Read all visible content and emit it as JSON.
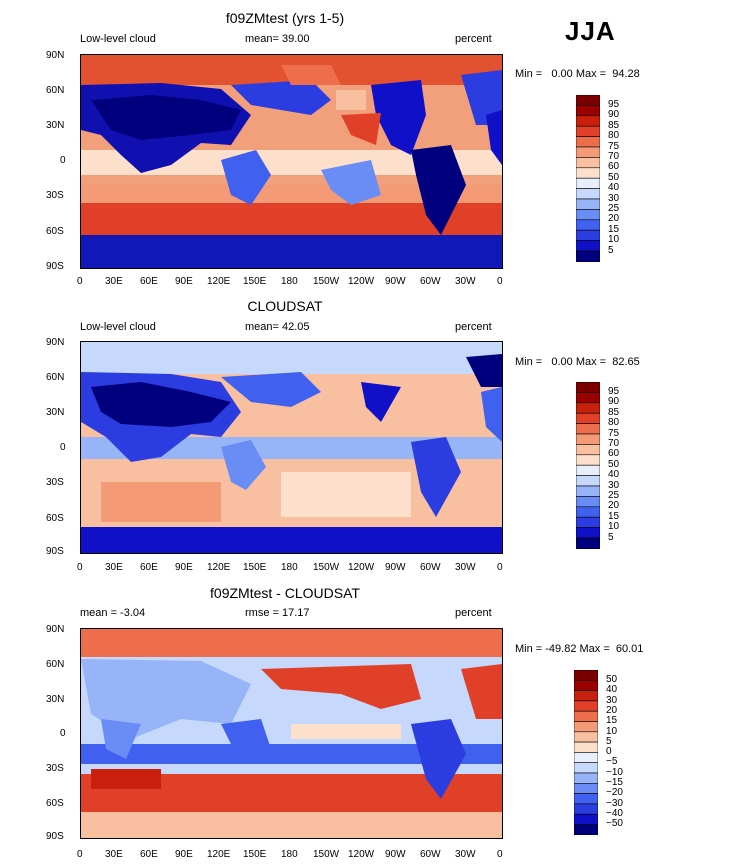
{
  "season": "JJA",
  "panels": [
    {
      "title": "f09ZMtest (yrs 1-5)",
      "left_label": "Low-level cloud",
      "center_label": "mean=  39.00",
      "right_label": "percent",
      "min_max": "Min =   0.00 Max =  94.28",
      "colorbar_labels": [
        "95",
        "90",
        "85",
        "80",
        "75",
        "70",
        "60",
        "50",
        "40",
        "30",
        "25",
        "20",
        "15",
        "10",
        "5"
      ]
    },
    {
      "title": "CLOUDSAT",
      "left_label": "Low-level cloud",
      "center_label": "mean=  42.05",
      "right_label": "percent",
      "min_max": "Min =   0.00 Max =  82.65",
      "colorbar_labels": [
        "95",
        "90",
        "85",
        "80",
        "75",
        "70",
        "60",
        "50",
        "40",
        "30",
        "25",
        "20",
        "15",
        "10",
        "5"
      ]
    },
    {
      "title": "f09ZMtest - CLOUDSAT",
      "left_label": "mean =  -3.04",
      "center_label": "rmse =  17.17",
      "right_label": "percent",
      "min_max": "Min = -49.82 Max =  60.01",
      "colorbar_labels": [
        "50",
        "40",
        "30",
        "20",
        "15",
        "10",
        "5",
        "0",
        "−5",
        "−10",
        "−15",
        "−20",
        "−30",
        "−40",
        "−50"
      ]
    }
  ],
  "lat_ticks": [
    "90N",
    "60N",
    "30N",
    "0",
    "30S",
    "60S",
    "90S"
  ],
  "lon_ticks": [
    "0",
    "30E",
    "60E",
    "90E",
    "120E",
    "150E",
    "180",
    "150W",
    "120W",
    "90W",
    "60W",
    "30W",
    "0"
  ],
  "colors": {
    "abs_scale": [
      "#00007f",
      "#1010c8",
      "#2b3ce0",
      "#4060f0",
      "#6a8cf5",
      "#98b4f8",
      "#c6d8fb",
      "#e8eefc",
      "#fce0cc",
      "#f8c0a0",
      "#f59a76",
      "#ee6e4c",
      "#e04028",
      "#c8200c",
      "#9a0000",
      "#7a0000"
    ],
    "diff_scale": [
      "#00007f",
      "#1010c8",
      "#2b3ce0",
      "#4060f0",
      "#6a8cf5",
      "#98b4f8",
      "#c6d8fb",
      "#e8eefc",
      "#fce0cc",
      "#f8c0a0",
      "#f59a76",
      "#ee6e4c",
      "#e04028",
      "#c8200c",
      "#9a0000",
      "#7a0000"
    ]
  }
}
